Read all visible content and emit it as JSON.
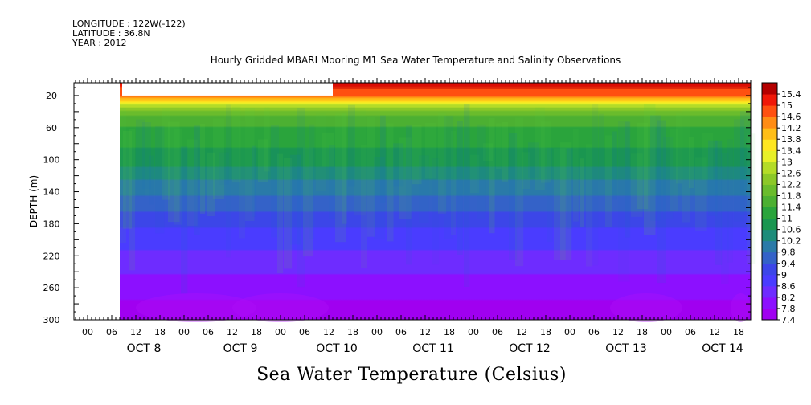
{
  "header": {
    "longitude": "LONGITUDE : 122W(-122)",
    "latitude": "LATITUDE : 36.8N",
    "year": "YEAR : 2012",
    "title": "Hourly Gridded MBARI Mooring M1 Sea Water Temperature and Salinity Observations"
  },
  "footer": {
    "variable_title": "Sea Water Temperature (Celsius)"
  },
  "chart_data": {
    "type": "heatmap",
    "title": "Hourly Gridded MBARI Mooring M1 Sea Water Temperature and Salinity Observations",
    "ylabel": "DEPTH (m)",
    "xlabel": "",
    "colorbar_label": "Sea Water Temperature (Celsius)",
    "x_range_hours": [
      0,
      165
    ],
    "ylim": [
      300,
      4
    ],
    "y_ticks": [
      20,
      60,
      100,
      140,
      180,
      220,
      260,
      300
    ],
    "x_hour_ticks": [
      "00",
      "06",
      "12",
      "18",
      "00",
      "06",
      "12",
      "18",
      "00",
      "06",
      "12",
      "18",
      "00",
      "06",
      "12",
      "18",
      "00",
      "06",
      "12",
      "18",
      "00",
      "06",
      "12",
      "18",
      "00",
      "06",
      "12",
      "18"
    ],
    "day_labels": [
      "OCT  8",
      "OCT  9",
      "OCT 10",
      "OCT 11",
      "OCT 12",
      "OCT 13",
      "OCT 14"
    ],
    "colorbar_levels": [
      7.4,
      7.8,
      8.2,
      8.6,
      9,
      9.4,
      9.8,
      10.2,
      10.6,
      11,
      11.4,
      11.8,
      12.2,
      12.6,
      13,
      13.4,
      13.8,
      14.2,
      14.6,
      15,
      15.4
    ],
    "colorbar_level_labels": [
      "7.4",
      "7.8",
      "8.2",
      "8.6",
      "9",
      "9.4",
      "9.8",
      "10.2",
      "10.6",
      "11",
      "11.4",
      "11.8",
      "12.2",
      "12.6",
      "13",
      "13.4",
      "13.8",
      "14.2",
      "14.6",
      "15",
      "15.4"
    ],
    "colorbar_colors": [
      "#a000f0",
      "#8c10ff",
      "#6e2cff",
      "#4a3cff",
      "#3c46e8",
      "#3462c8",
      "#2a7aa8",
      "#1e8c7a",
      "#1a9650",
      "#2aa43c",
      "#4cb032",
      "#6abc2c",
      "#8cc828",
      "#b4dc28",
      "#e8f028",
      "#ffe620",
      "#ffbe18",
      "#ff8c14",
      "#ff5010",
      "#f01808",
      "#b40000"
    ],
    "missing_data_hours": [
      [
        0,
        4
      ],
      [
        5,
        61
      ]
    ],
    "profile": [
      {
        "depth": 4,
        "temp": 15.2
      },
      {
        "depth": 12,
        "temp": 14.9
      },
      {
        "depth": 20,
        "temp": 14.6
      },
      {
        "depth": 26,
        "temp": 13.8
      },
      {
        "depth": 32,
        "temp": 12.8
      },
      {
        "depth": 38,
        "temp": 12.2
      },
      {
        "depth": 50,
        "temp": 11.6
      },
      {
        "depth": 70,
        "temp": 11.2
      },
      {
        "depth": 100,
        "temp": 10.8
      },
      {
        "depth": 130,
        "temp": 10.1
      },
      {
        "depth": 160,
        "temp": 9.5
      },
      {
        "depth": 190,
        "temp": 8.9
      },
      {
        "depth": 220,
        "temp": 8.5
      },
      {
        "depth": 250,
        "temp": 8.1
      },
      {
        "depth": 275,
        "temp": 7.8
      },
      {
        "depth": 300,
        "temp": 7.6
      }
    ]
  }
}
